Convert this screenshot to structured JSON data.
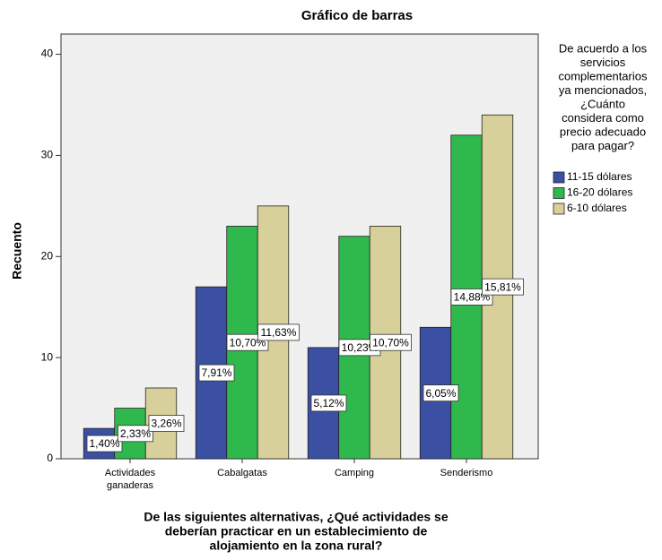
{
  "chart_data": {
    "type": "bar",
    "title": "Gráfico de barras",
    "ylabel": "Recuento",
    "xlabel_lines": [
      "De las siguientes alternativas, ¿Qué actividades se",
      "deberían practicar en un establecimiento de",
      "alojamiento en la zona rural?"
    ],
    "categories": [
      "Actividades ganaderas",
      "Cabalgatas",
      "Camping",
      "Senderismo"
    ],
    "series": [
      {
        "name": "11-15 dólares",
        "color": "#3b4fa3",
        "values": [
          3,
          17,
          11,
          13
        ],
        "percent_labels": [
          "1,40%",
          "7,91%",
          "5,12%",
          "6,05%"
        ]
      },
      {
        "name": "16-20 dólares",
        "color": "#2fb84c",
        "values": [
          5,
          23,
          22,
          32
        ],
        "percent_labels": [
          "2,33%",
          "10,70%",
          "10,23%",
          "14,88%"
        ]
      },
      {
        "name": "6-10 dólares",
        "color": "#d8d09a",
        "values": [
          7,
          25,
          23,
          34
        ],
        "percent_labels": [
          "3,26%",
          "11,63%",
          "10,70%",
          "15,81%"
        ]
      }
    ],
    "legend_title_lines": [
      "De acuerdo a los",
      "servicios",
      "complementarios",
      "ya mencionados,",
      "¿Cuánto",
      "considera como",
      "precio adecuado",
      "para pagar?"
    ],
    "ylim": [
      0,
      42
    ],
    "yticks": [
      0,
      10,
      20,
      30,
      40
    ],
    "legend": "right"
  }
}
